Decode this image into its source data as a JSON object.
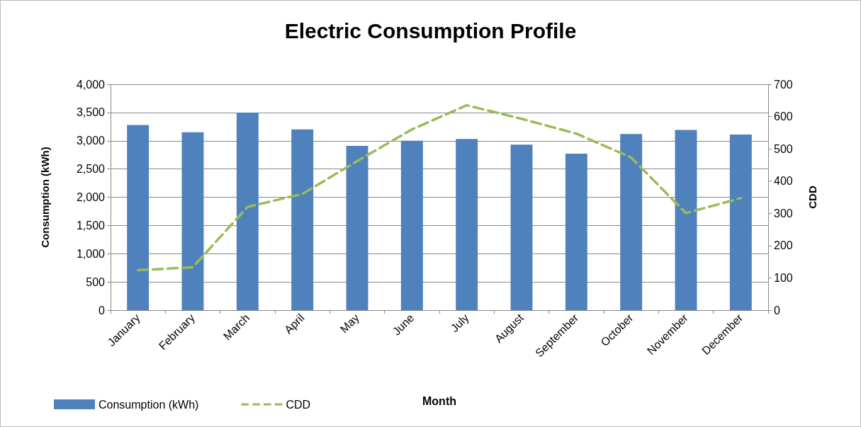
{
  "chart_data": {
    "type": "bar",
    "title": "Electric Consumption Profile",
    "xlabel": "Month",
    "ylabel": "Consumption (kWh)",
    "y2label": "CDD",
    "categories": [
      "January",
      "February",
      "March",
      "April",
      "May",
      "June",
      "July",
      "August",
      "September",
      "October",
      "November",
      "December"
    ],
    "series": [
      {
        "name": "Consumption (kWh)",
        "color": "#4f81bd",
        "values": [
          3280,
          3150,
          3500,
          3200,
          2910,
          3000,
          3030,
          2930,
          2770,
          3120,
          3190,
          3110
        ]
      },
      {
        "name": "CDD",
        "type": "line",
        "axis": "y2",
        "color": "#9bbb59",
        "line_style": "dashed",
        "marker": "none",
        "values": [
          124,
          133,
          320,
          360,
          462,
          560,
          635,
          593,
          547,
          473,
          301,
          347
        ]
      }
    ],
    "ylim": [
      0,
      4000
    ],
    "yticks": [
      0,
      500,
      {
        "value": 1000,
        "label": "1,000"
      },
      {
        "value": 1500,
        "label": "1,500"
      },
      {
        "value": 2000,
        "label": "2,000"
      },
      {
        "value": 2500,
        "label": "2,500"
      },
      {
        "value": 3000,
        "label": "3,000"
      },
      {
        "value": 3500,
        "label": "3,500"
      },
      {
        "value": 4000,
        "label": "4,000"
      }
    ],
    "y2lim": [
      0,
      700
    ],
    "y2ticks": [
      0,
      100,
      200,
      300,
      400,
      500,
      600,
      700
    ],
    "grid": "y",
    "legend": "bottom left"
  }
}
